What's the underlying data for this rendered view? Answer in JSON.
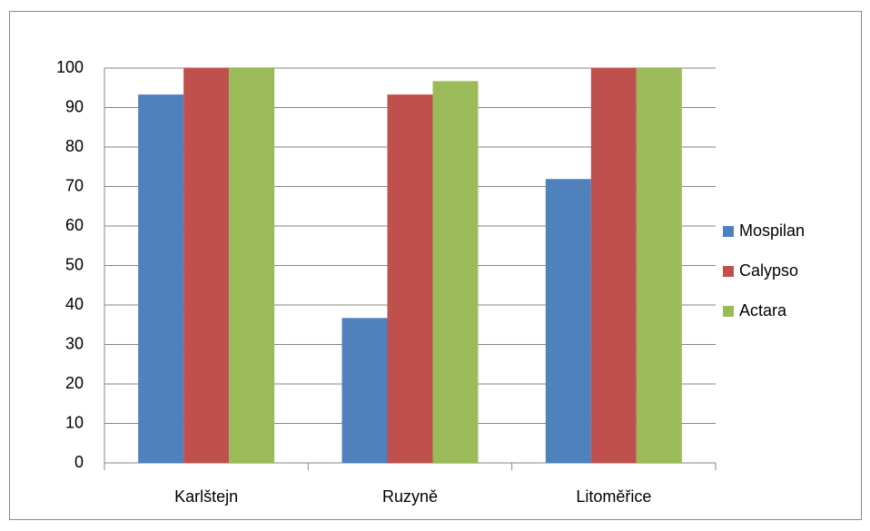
{
  "chart_data": {
    "type": "bar",
    "categories": [
      "Karlštejn",
      "Ruzyně",
      "Litoměřice"
    ],
    "series": [
      {
        "name": "Mospilan",
        "color": "#4f81bd",
        "values": [
          93.3,
          36.7,
          71.9
        ]
      },
      {
        "name": "Calypso",
        "color": "#c0504d",
        "values": [
          100,
          93.3,
          100
        ]
      },
      {
        "name": "Actara",
        "color": "#9bbb59",
        "values": [
          100,
          96.7,
          100
        ]
      }
    ],
    "ylim": [
      0,
      100
    ],
    "yticks": [
      0,
      10,
      20,
      30,
      40,
      50,
      60,
      70,
      80,
      90,
      100
    ],
    "grid": true,
    "legend": "right"
  }
}
